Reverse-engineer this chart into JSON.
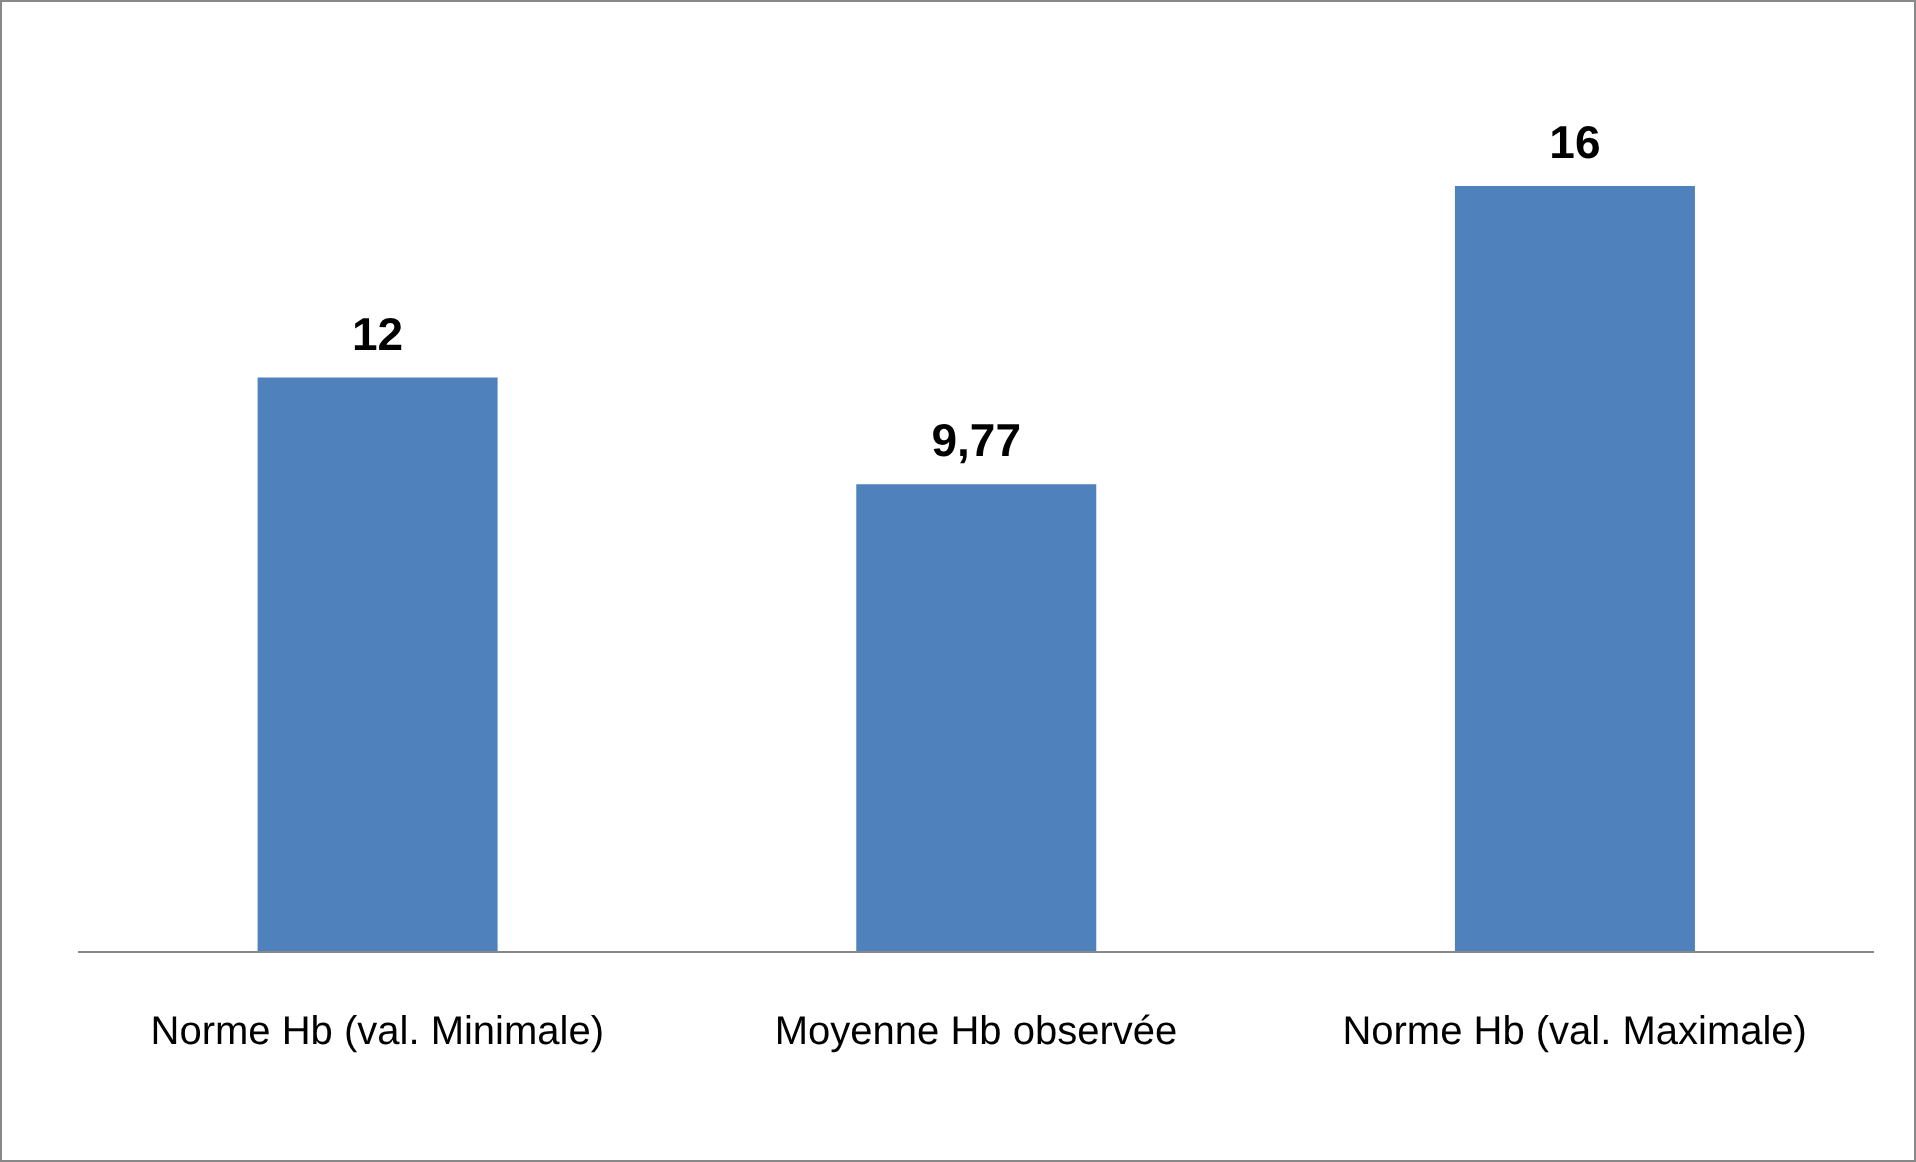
{
  "chart_data": {
    "type": "bar",
    "categories": [
      "Norme Hb (val. Minimale)",
      "Moyenne Hb observée",
      "Norme Hb (val. Maximale)"
    ],
    "values": [
      12,
      9.77,
      16
    ],
    "value_labels": [
      "12",
      "9,77",
      "16"
    ],
    "color": "#4f81bd",
    "grid": false,
    "legend": false
  }
}
